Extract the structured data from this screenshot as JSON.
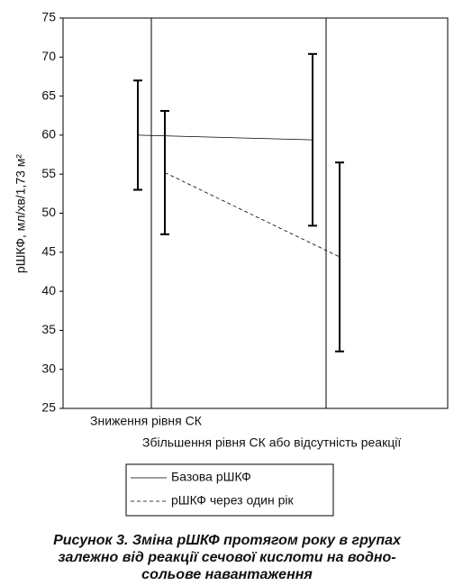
{
  "chart_data": {
    "type": "line",
    "ylabel": "рШКФ, мл/хв/1,73 м²",
    "categories": [
      "Зниження рівня СК",
      "Збільшення рівня СК або відсутність реакції"
    ],
    "series": [
      {
        "name": "Базова рШКФ",
        "color": "#000000",
        "dash": false,
        "values": [
          60,
          59.4
        ],
        "errors": [
          7,
          11
        ]
      },
      {
        "name": "рШКФ через один рік",
        "color": "#000000",
        "dash": true,
        "values": [
          55.2,
          44.4
        ],
        "errors": [
          7.9,
          12.1
        ]
      }
    ],
    "ylim": [
      25,
      75
    ],
    "yticks": [
      25,
      30,
      35,
      40,
      45,
      50,
      55,
      60,
      65,
      70,
      75
    ],
    "caption": [
      "Рисунок 3. Зміна рШКФ протягом року в групах",
      "залежно від реакції сечової кислоти на водно-",
      "сольове навантаження"
    ]
  }
}
